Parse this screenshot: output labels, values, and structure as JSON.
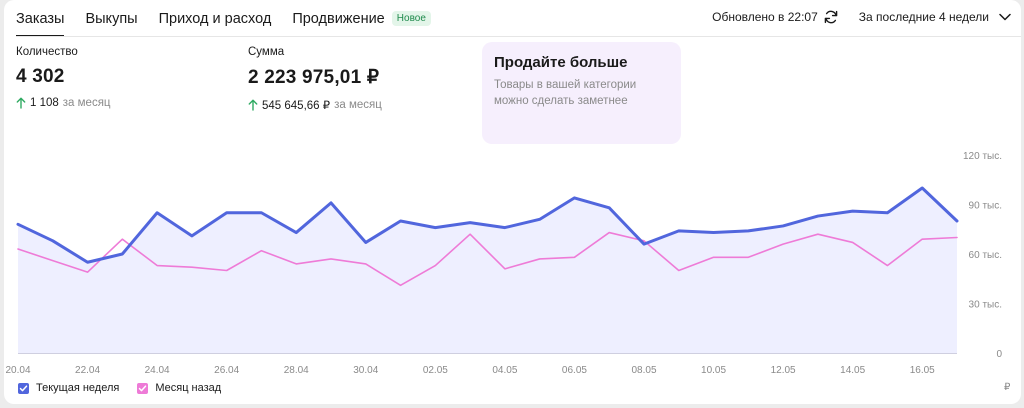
{
  "tabs": [
    {
      "label": "Заказы",
      "active": true
    },
    {
      "label": "Выкупы",
      "active": false
    },
    {
      "label": "Приход и расход",
      "active": false
    },
    {
      "label": "Продвижение",
      "active": false,
      "badge": "Новое"
    }
  ],
  "header": {
    "updated": "Обновлено в 22:07",
    "period": "За последние 4 недели"
  },
  "metrics": [
    {
      "label": "Количество",
      "value": "4 302",
      "delta": "1 108",
      "delta_suffix": "за месяц"
    },
    {
      "label": "Сумма",
      "value": "2 223 975,01 ₽",
      "delta": "545 645,66 ₽",
      "delta_suffix": "за месяц"
    }
  ],
  "promo": {
    "title": "Продайте больше",
    "text": "Товары в вашей категории можно сделать заметнее"
  },
  "colors": {
    "current": "#5166dd",
    "previous": "#ee7bd7",
    "area": "#eeefff",
    "up_arrow": "#2faa62"
  },
  "currency_label": "₽",
  "chart_data": {
    "type": "line",
    "x": [
      "20.04",
      "21.04",
      "22.04",
      "23.04",
      "24.04",
      "25.04",
      "26.04",
      "27.04",
      "28.04",
      "29.04",
      "30.04",
      "01.05",
      "02.05",
      "03.05",
      "04.05",
      "05.05",
      "06.05",
      "07.05",
      "08.05",
      "09.05",
      "10.05",
      "11.05",
      "12.05",
      "13.05",
      "14.05",
      "15.05",
      "16.05",
      "17.05"
    ],
    "xticks": [
      "20.04",
      "22.04",
      "24.04",
      "26.04",
      "28.04",
      "30.04",
      "02.05",
      "04.05",
      "06.05",
      "08.05",
      "10.05",
      "12.05",
      "14.05",
      "16.05"
    ],
    "ylim": [
      0,
      120000
    ],
    "yticks": [
      0,
      30000,
      60000,
      90000,
      120000
    ],
    "ytick_labels": [
      "0",
      "30 тыс.",
      "60 тыс.",
      "90 тыс.",
      "120 тыс."
    ],
    "grid": false,
    "legend_position": "bottom-left",
    "series": [
      {
        "name": "Текущая неделя",
        "color": "#5166dd",
        "values": [
          78000,
          68000,
          55000,
          60000,
          85000,
          71000,
          85000,
          85000,
          73000,
          91000,
          67000,
          80000,
          76000,
          79000,
          76000,
          81000,
          94000,
          88000,
          66000,
          74000,
          73000,
          74000,
          77000,
          83000,
          86000,
          85000,
          100000,
          80000
        ]
      },
      {
        "name": "Месяц назад",
        "color": "#ee7bd7",
        "values": [
          63000,
          56000,
          49000,
          69000,
          53000,
          52000,
          50000,
          62000,
          54000,
          57000,
          54000,
          41000,
          53000,
          72000,
          51000,
          57000,
          58000,
          73000,
          68000,
          50000,
          58000,
          58000,
          66000,
          72000,
          67000,
          53000,
          69000,
          70000
        ]
      }
    ]
  }
}
